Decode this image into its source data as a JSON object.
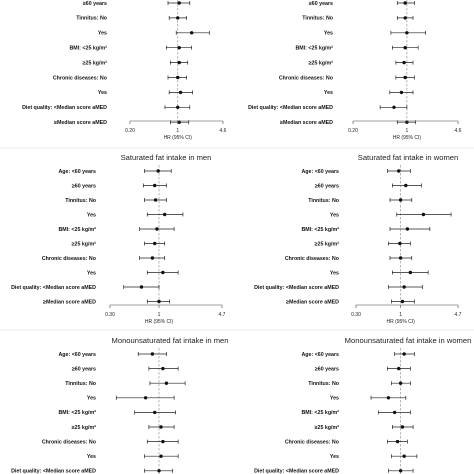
{
  "chart_data": [
    {
      "type": "forest",
      "title": "",
      "xlabel": "HR (95% CI)",
      "xlim": [
        0.2,
        4.6
      ],
      "xticks": [
        "0.20",
        "1",
        "4.6"
      ],
      "reference_line": 1,
      "rows": [
        {
          "label": "≥60 years",
          "hr": 1.05,
          "lo": 0.72,
          "hi": 1.5
        },
        {
          "label": "Tinnitus:  No",
          "hr": 1.0,
          "lo": 0.75,
          "hi": 1.35
        },
        {
          "label": "Yes",
          "hr": 1.6,
          "lo": 0.95,
          "hi": 2.9
        },
        {
          "label": "BMI:  <25 kg/m²",
          "hr": 1.05,
          "lo": 0.68,
          "hi": 1.6
        },
        {
          "label": "≥25 kg/m²",
          "hr": 1.05,
          "lo": 0.78,
          "hi": 1.4
        },
        {
          "label": "Chronic diseases:  No",
          "hr": 1.0,
          "lo": 0.72,
          "hi": 1.35
        },
        {
          "label": "Yes",
          "hr": 1.1,
          "lo": 0.75,
          "hi": 1.65
        },
        {
          "label": "Diet quality:  <Median score aMED",
          "hr": 1.0,
          "lo": 0.65,
          "hi": 1.5
        },
        {
          "label": "≥Median score aMED",
          "hr": 1.05,
          "lo": 0.78,
          "hi": 1.45
        }
      ]
    },
    {
      "type": "forest",
      "title": "",
      "xlabel": "HR (95% CI)",
      "xlim": [
        0.2,
        4.6
      ],
      "xticks": [
        "0.20",
        "1",
        "4.6"
      ],
      "reference_line": 1,
      "rows": [
        {
          "label": "≥60 years",
          "hr": 0.95,
          "lo": 0.75,
          "hi": 1.25
        },
        {
          "label": "Tinnitus:  No",
          "hr": 0.95,
          "lo": 0.75,
          "hi": 1.2
        },
        {
          "label": "Yes",
          "hr": 1.0,
          "lo": 0.62,
          "hi": 1.75
        },
        {
          "label": "BMI:  <25 kg/m²",
          "hr": 0.95,
          "lo": 0.65,
          "hi": 1.4
        },
        {
          "label": "≥25 kg/m²",
          "hr": 0.92,
          "lo": 0.72,
          "hi": 1.2
        },
        {
          "label": "Chronic diseases:  No",
          "hr": 0.95,
          "lo": 0.72,
          "hi": 1.25
        },
        {
          "label": "Yes",
          "hr": 0.85,
          "lo": 0.6,
          "hi": 1.2
        },
        {
          "label": "Diet quality:  <Median score aMED",
          "hr": 0.68,
          "lo": 0.45,
          "hi": 1.0
        },
        {
          "label": "≥Median score aMED",
          "hr": 1.0,
          "lo": 0.75,
          "hi": 1.3
        }
      ]
    },
    {
      "type": "forest",
      "title": "Saturated fat intake in men",
      "xlabel": "HR (95% CI)",
      "xlim": [
        0.3,
        4.7
      ],
      "xticks": [
        "0.30",
        "1",
        "4.7"
      ],
      "reference_line": 1,
      "rows": [
        {
          "label": "Age:  <60 years",
          "hr": 0.98,
          "lo": 0.7,
          "hi": 1.35
        },
        {
          "label": "≥60 years",
          "hr": 0.9,
          "lo": 0.68,
          "hi": 1.2
        },
        {
          "label": "Tinnitus:  No",
          "hr": 0.92,
          "lo": 0.7,
          "hi": 1.2
        },
        {
          "label": "Yes",
          "hr": 1.15,
          "lo": 0.75,
          "hi": 1.8
        },
        {
          "label": "BMI:  <25 kg/m²",
          "hr": 0.95,
          "lo": 0.62,
          "hi": 1.45
        },
        {
          "label": "≥25 kg/m²",
          "hr": 0.9,
          "lo": 0.7,
          "hi": 1.15
        },
        {
          "label": "Chronic diseases:  No",
          "hr": 0.85,
          "lo": 0.62,
          "hi": 1.15
        },
        {
          "label": "Yes",
          "hr": 1.1,
          "lo": 0.75,
          "hi": 1.6
        },
        {
          "label": "Diet quality:  <Median score aMED",
          "hr": 0.65,
          "lo": 0.42,
          "hi": 1.0
        },
        {
          "label": "≥Median score aMED",
          "hr": 1.0,
          "lo": 0.75,
          "hi": 1.3
        }
      ]
    },
    {
      "type": "forest",
      "title": "Saturated fat intake in women",
      "xlabel": "HR (95% CI)",
      "xlim": [
        0.3,
        4.7
      ],
      "xticks": [
        "0.30",
        "1",
        "4.7"
      ],
      "reference_line": 1,
      "rows": [
        {
          "label": "Age:  <60 years",
          "hr": 0.95,
          "lo": 0.7,
          "hi": 1.3
        },
        {
          "label": "≥60 years",
          "hr": 1.15,
          "lo": 0.8,
          "hi": 1.75
        },
        {
          "label": "Tinnitus:  No",
          "hr": 1.0,
          "lo": 0.75,
          "hi": 1.35
        },
        {
          "label": "Yes",
          "hr": 1.85,
          "lo": 0.9,
          "hi": 3.9
        },
        {
          "label": "BMI:  <25 kg/m²",
          "hr": 1.2,
          "lo": 0.75,
          "hi": 2.2
        },
        {
          "label": "≥25 kg/m²",
          "hr": 0.98,
          "lo": 0.72,
          "hi": 1.3
        },
        {
          "label": "Chronic diseases:  No",
          "hr": 1.0,
          "lo": 0.75,
          "hi": 1.35
        },
        {
          "label": "Yes",
          "hr": 1.3,
          "lo": 0.8,
          "hi": 2.1
        },
        {
          "label": "Diet quality:  <Median score aMED",
          "hr": 1.1,
          "lo": 0.72,
          "hi": 1.8
        },
        {
          "label": "≥Median score aMED",
          "hr": 1.05,
          "lo": 0.78,
          "hi": 1.45
        }
      ]
    },
    {
      "type": "forest",
      "title": "Monounsaturated fat intake in men",
      "xlabel": "",
      "xlim": [
        0.3,
        4.7
      ],
      "xticks": [],
      "reference_line": 1,
      "rows": [
        {
          "label": "Age:  <60 years",
          "hr": 0.85,
          "lo": 0.6,
          "hi": 1.2
        },
        {
          "label": "≥60 years",
          "hr": 1.1,
          "lo": 0.78,
          "hi": 1.6
        },
        {
          "label": "Tinnitus:  No",
          "hr": 1.2,
          "lo": 0.8,
          "hi": 1.9
        },
        {
          "label": "Yes",
          "hr": 0.72,
          "lo": 0.35,
          "hi": 1.45
        },
        {
          "label": "BMI:  <25 kg/m²",
          "hr": 0.9,
          "lo": 0.55,
          "hi": 1.5
        },
        {
          "label": "≥25 kg/m²",
          "hr": 1.05,
          "lo": 0.78,
          "hi": 1.45
        },
        {
          "label": "Chronic diseases:  No",
          "hr": 1.1,
          "lo": 0.75,
          "hi": 1.6
        },
        {
          "label": "Yes",
          "hr": 1.05,
          "lo": 0.7,
          "hi": 1.6
        },
        {
          "label": "Diet quality:  <Median score aMED",
          "hr": 1.0,
          "lo": 0.7,
          "hi": 1.4
        }
      ]
    },
    {
      "type": "forest",
      "title": "Monounsaturated fat intake in women",
      "xlabel": "",
      "xlim": [
        0.3,
        4.7
      ],
      "xticks": [],
      "reference_line": 1,
      "rows": [
        {
          "label": "Age:  <60 years",
          "hr": 1.1,
          "lo": 0.85,
          "hi": 1.45
        },
        {
          "label": "≥60 years",
          "hr": 0.95,
          "lo": 0.7,
          "hi": 1.3
        },
        {
          "label": "Tinnitus:  No",
          "hr": 1.0,
          "lo": 0.78,
          "hi": 1.3
        },
        {
          "label": "Yes",
          "hr": 0.72,
          "lo": 0.45,
          "hi": 1.15
        },
        {
          "label": "BMI:  <25 kg/m²",
          "hr": 0.85,
          "lo": 0.55,
          "hi": 1.3
        },
        {
          "label": "≥25 kg/m²",
          "hr": 1.05,
          "lo": 0.8,
          "hi": 1.4
        },
        {
          "label": "Chronic diseases:  No",
          "hr": 0.92,
          "lo": 0.7,
          "hi": 1.2
        },
        {
          "label": "Yes",
          "hr": 1.1,
          "lo": 0.78,
          "hi": 1.55
        },
        {
          "label": "Diet quality:  <Median score aMED",
          "hr": 1.0,
          "lo": 0.72,
          "hi": 1.4
        }
      ]
    }
  ]
}
